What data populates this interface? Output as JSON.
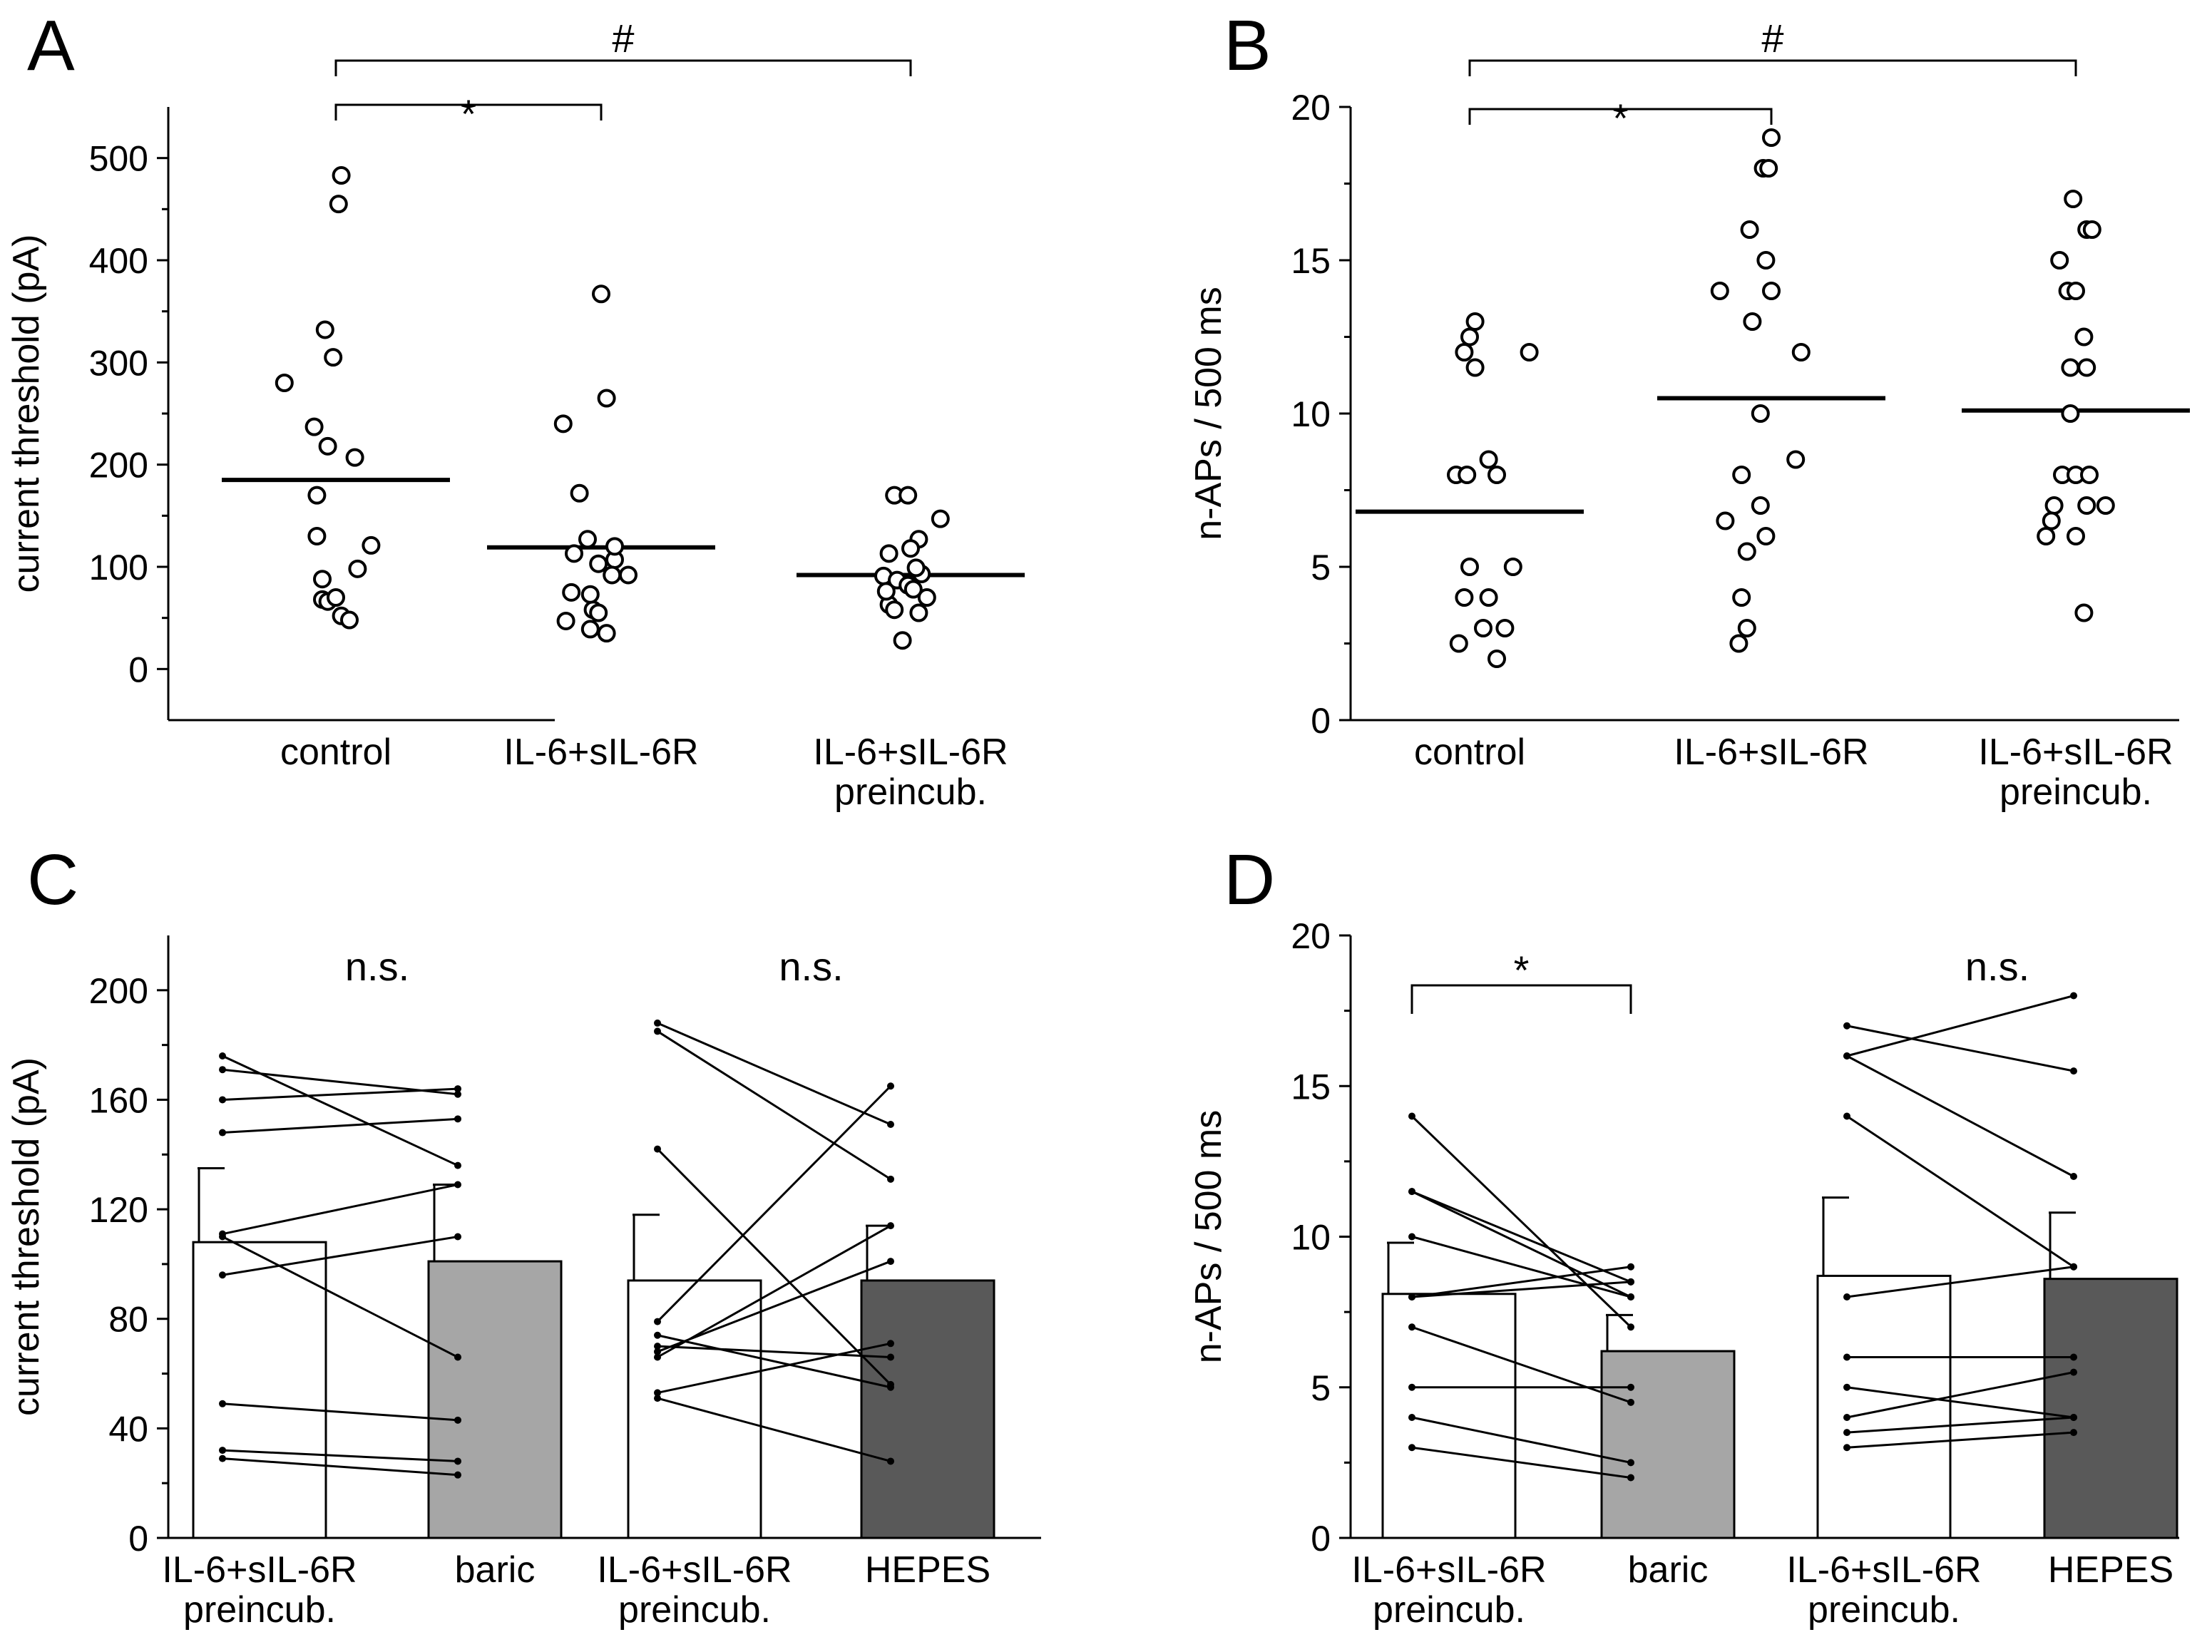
{
  "chart_data": [
    {
      "panel": "A",
      "type": "scatter",
      "ylabel": "current threshold (pA)",
      "ylim": [
        -50,
        550
      ],
      "yticks": [
        0,
        100,
        200,
        300,
        400,
        500
      ],
      "categories": [
        [
          "control"
        ],
        [
          "IL-6+sIL-6R"
        ],
        [
          "IL-6+sIL-6R",
          "preincub."
        ]
      ],
      "groups": [
        {
          "name": "control",
          "mean": 185,
          "points": [
            [
              0.02,
              483
            ],
            [
              0.01,
              455
            ],
            [
              -0.04,
              332
            ],
            [
              -0.01,
              305
            ],
            [
              -0.19,
              280
            ],
            [
              -0.08,
              237
            ],
            [
              -0.03,
              218
            ],
            [
              0.07,
              207
            ],
            [
              -0.07,
              170
            ],
            [
              -0.07,
              130
            ],
            [
              0.13,
              121
            ],
            [
              0.08,
              98
            ],
            [
              -0.05,
              88
            ],
            [
              -0.05,
              68
            ],
            [
              -0.03,
              66
            ],
            [
              0.0,
              70
            ],
            [
              0.02,
              52
            ],
            [
              0.05,
              48
            ]
          ]
        },
        {
          "name": "IL-6+sIL-6R",
          "mean": 119,
          "points": [
            [
              0.0,
              367
            ],
            [
              0.02,
              265
            ],
            [
              -0.14,
              240
            ],
            [
              -0.08,
              172
            ],
            [
              -0.05,
              127
            ],
            [
              -0.11,
              75
            ],
            [
              0.05,
              107
            ],
            [
              -0.01,
              103
            ],
            [
              -0.1,
              113
            ],
            [
              0.04,
              92
            ],
            [
              0.1,
              92
            ],
            [
              -0.03,
              58
            ],
            [
              -0.01,
              55
            ],
            [
              -0.04,
              73
            ],
            [
              -0.13,
              47
            ],
            [
              -0.04,
              39
            ],
            [
              0.02,
              35
            ],
            [
              0.05,
              120
            ]
          ]
        },
        {
          "name": "IL-6+sIL-6R preincub.",
          "mean": 92,
          "points": [
            [
              -0.06,
              170
            ],
            [
              -0.01,
              170
            ],
            [
              0.11,
              147
            ],
            [
              0.03,
              127
            ],
            [
              -0.08,
              113
            ],
            [
              0.0,
              118
            ],
            [
              0.04,
              93
            ],
            [
              -0.1,
              91
            ],
            [
              -0.05,
              87
            ],
            [
              -0.01,
              82
            ],
            [
              0.01,
              78
            ],
            [
              -0.08,
              63
            ],
            [
              -0.06,
              58
            ],
            [
              0.06,
              70
            ],
            [
              0.03,
              55
            ],
            [
              -0.03,
              28
            ],
            [
              -0.09,
              76
            ],
            [
              0.02,
              99
            ]
          ]
        }
      ],
      "significance": [
        {
          "from": 0,
          "to": 1,
          "label": "*"
        },
        {
          "from": 0,
          "to": 2,
          "label": "#"
        }
      ]
    },
    {
      "panel": "B",
      "type": "scatter",
      "ylabel": "n-APs / 500 ms",
      "ylim": [
        0,
        20
      ],
      "yticks": [
        0,
        5,
        10,
        15,
        20
      ],
      "categories": [
        [
          "control"
        ],
        [
          "IL-6+sIL-6R"
        ],
        [
          "IL-6+sIL-6R",
          "preincub."
        ]
      ],
      "groups": [
        {
          "name": "control",
          "mean": 6.8,
          "points": [
            [
              0.02,
              13.0
            ],
            [
              0.0,
              12.5
            ],
            [
              -0.02,
              12.0
            ],
            [
              0.22,
              12.0
            ],
            [
              0.02,
              11.5
            ],
            [
              0.07,
              8.5
            ],
            [
              -0.05,
              8.0
            ],
            [
              0.1,
              8.0
            ],
            [
              0.0,
              5.0
            ],
            [
              0.16,
              5.0
            ],
            [
              -0.02,
              4.0
            ],
            [
              0.07,
              4.0
            ],
            [
              0.05,
              3.0
            ],
            [
              0.13,
              3.0
            ],
            [
              -0.04,
              2.5
            ],
            [
              0.1,
              2.0
            ],
            [
              -0.01,
              8.0
            ]
          ]
        },
        {
          "name": "IL-6+sIL-6R",
          "mean": 10.5,
          "points": [
            [
              0.0,
              19.0
            ],
            [
              -0.03,
              18.0
            ],
            [
              -0.01,
              18.0
            ],
            [
              -0.19,
              14.0
            ],
            [
              0.0,
              14.0
            ],
            [
              -0.08,
              16.0
            ],
            [
              -0.02,
              15.0
            ],
            [
              0.11,
              12.0
            ],
            [
              -0.07,
              13.0
            ],
            [
              -0.04,
              10.0
            ],
            [
              0.09,
              8.5
            ],
            [
              -0.11,
              8.0
            ],
            [
              -0.04,
              7.0
            ],
            [
              -0.02,
              6.0
            ],
            [
              -0.17,
              6.5
            ],
            [
              -0.09,
              5.5
            ],
            [
              -0.11,
              4.0
            ],
            [
              -0.09,
              3.0
            ],
            [
              -0.12,
              2.5
            ]
          ]
        },
        {
          "name": "IL-6+sIL-6R preincub.",
          "mean": 10.1,
          "points": [
            [
              -0.01,
              17.0
            ],
            [
              0.04,
              16.0
            ],
            [
              0.06,
              16.0
            ],
            [
              -0.06,
              15.0
            ],
            [
              -0.03,
              14.0
            ],
            [
              0.0,
              14.0
            ],
            [
              0.03,
              12.5
            ],
            [
              -0.02,
              11.5
            ],
            [
              0.04,
              11.5
            ],
            [
              -0.02,
              10.0
            ],
            [
              -0.05,
              8.0
            ],
            [
              0.0,
              8.0
            ],
            [
              0.05,
              8.0
            ],
            [
              -0.08,
              7.0
            ],
            [
              0.04,
              7.0
            ],
            [
              0.11,
              7.0
            ],
            [
              -0.09,
              6.5
            ],
            [
              -0.11,
              6.0
            ],
            [
              0.0,
              6.0
            ],
            [
              0.03,
              3.5
            ]
          ]
        }
      ],
      "significance": [
        {
          "from": 0,
          "to": 1,
          "label": "*"
        },
        {
          "from": 0,
          "to": 2,
          "label": "#"
        }
      ]
    },
    {
      "panel": "C",
      "type": "bar",
      "ylabel": "current threshold (pA)",
      "ylim": [
        0,
        220
      ],
      "yticks": [
        0,
        40,
        80,
        120,
        160,
        200
      ],
      "categories": [
        [
          "IL-6+sIL-6R",
          "preincub."
        ],
        [
          "baric"
        ],
        [
          "IL-6+sIL-6R",
          "preincub."
        ],
        [
          "HEPES"
        ]
      ],
      "bars": [
        {
          "name": "IL-6+sIL-6R preincub.",
          "value": 108,
          "error": 27,
          "color": "#ffffff"
        },
        {
          "name": "baric",
          "value": 101,
          "error": 28,
          "color": "#a6a6a6"
        },
        {
          "name": "IL-6+sIL-6R preincub.",
          "value": 94,
          "error": 24,
          "color": "#ffffff"
        },
        {
          "name": "HEPES",
          "value": 94,
          "error": 20,
          "color": "#595959"
        }
      ],
      "pairs": [
        {
          "between": [
            0,
            1
          ],
          "values": [
            [
              176,
              136
            ],
            [
              171,
              162
            ],
            [
              160,
              164
            ],
            [
              148,
              153
            ],
            [
              111,
              129
            ],
            [
              110,
              66
            ],
            [
              96,
              110
            ],
            [
              49,
              43
            ],
            [
              32,
              28
            ],
            [
              29,
              23
            ]
          ]
        },
        {
          "between": [
            2,
            3
          ],
          "values": [
            [
              188,
              151
            ],
            [
              185,
              131
            ],
            [
              142,
              56
            ],
            [
              79,
              165
            ],
            [
              74,
              55
            ],
            [
              70,
              66
            ],
            [
              68,
              101
            ],
            [
              66,
              114
            ],
            [
              53,
              71
            ],
            [
              51,
              28
            ]
          ]
        }
      ],
      "significance": [
        {
          "from": 0,
          "to": 1,
          "label": "n.s.",
          "bracket": false
        },
        {
          "from": 2,
          "to": 3,
          "label": "n.s.",
          "bracket": false
        }
      ]
    },
    {
      "panel": "D",
      "type": "bar",
      "ylabel": "n-APs / 500 ms",
      "ylim": [
        0,
        20
      ],
      "yticks": [
        0,
        5,
        10,
        15,
        20
      ],
      "categories": [
        [
          "IL-6+sIL-6R",
          "preincub."
        ],
        [
          "baric"
        ],
        [
          "IL-6+sIL-6R",
          "preincub."
        ],
        [
          "HEPES"
        ]
      ],
      "bars": [
        {
          "name": "IL-6+sIL-6R preincub.",
          "value": 8.1,
          "error": 1.7,
          "color": "#ffffff"
        },
        {
          "name": "baric",
          "value": 6.2,
          "error": 1.2,
          "color": "#a6a6a6"
        },
        {
          "name": "IL-6+sIL-6R preincub.",
          "value": 8.7,
          "error": 2.6,
          "color": "#ffffff"
        },
        {
          "name": "HEPES",
          "value": 8.6,
          "error": 2.2,
          "color": "#595959"
        }
      ],
      "pairs": [
        {
          "between": [
            0,
            1
          ],
          "values": [
            [
              14,
              7.0
            ],
            [
              11.5,
              8.5
            ],
            [
              11.5,
              8.0
            ],
            [
              10,
              8.0
            ],
            [
              8,
              8.5
            ],
            [
              8,
              9.0
            ],
            [
              7,
              4.5
            ],
            [
              5,
              5.0
            ],
            [
              4,
              2.5
            ],
            [
              3,
              2.0
            ]
          ]
        },
        {
          "between": [
            2,
            3
          ],
          "values": [
            [
              17,
              15.5
            ],
            [
              16,
              18.0
            ],
            [
              16,
              12.0
            ],
            [
              14,
              9.0
            ],
            [
              8,
              9.0
            ],
            [
              6,
              6.0
            ],
            [
              5,
              4.0
            ],
            [
              4,
              5.5
            ],
            [
              3.5,
              4.0
            ],
            [
              3,
              3.5
            ]
          ]
        }
      ],
      "significance": [
        {
          "from": 0,
          "to": 1,
          "label": "*",
          "bracket": true
        },
        {
          "from": 2,
          "to": 3,
          "label": "n.s.",
          "bracket": false
        }
      ]
    }
  ]
}
